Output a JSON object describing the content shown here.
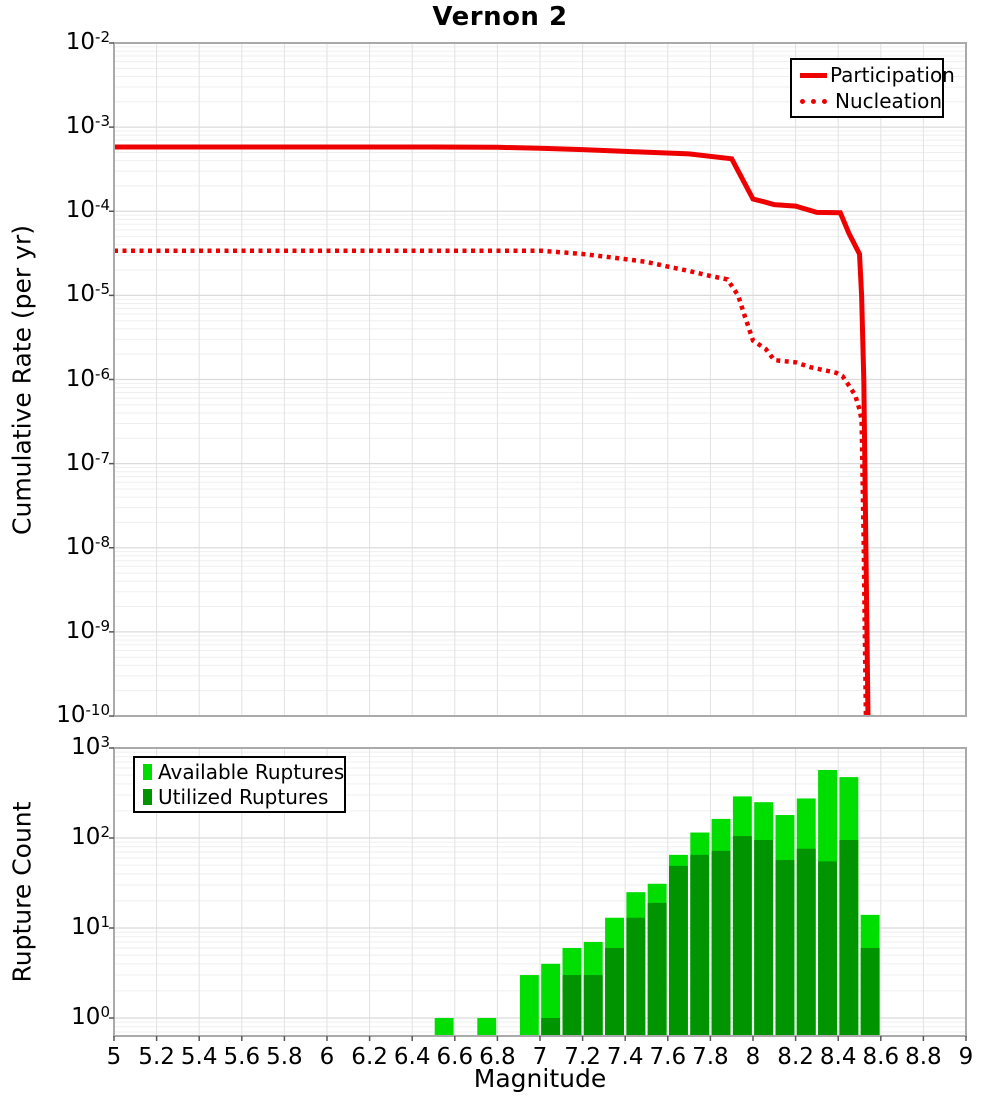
{
  "figure": {
    "title": "Vernon 2"
  },
  "colors": {
    "line_red": "#EE0000",
    "available_green": "#00DD00",
    "utilized_green": "#009400",
    "grid_major": "#DBDBDB",
    "grid_minor": "#EFEFEF",
    "grid_vertical": "#E2E2E2",
    "plot_border": "#AAAAAA",
    "tick_mark": "#555555"
  },
  "chart_data": [
    {
      "type": "line",
      "title": "Vernon 2",
      "ylabel": "Cumulative Rate (per yr)",
      "xlim": [
        5,
        9
      ],
      "ylim_log10": [
        -10,
        -2
      ],
      "grid": true,
      "legend_position": "top-right",
      "y_tick_exponents": [
        -2,
        -3,
        -4,
        -5,
        -6,
        -7,
        -8,
        -9,
        -10
      ],
      "x_tick_values": [
        5,
        5.2,
        5.4,
        5.6,
        5.8,
        6,
        6.2,
        6.4,
        6.6,
        6.8,
        7,
        7.2,
        7.4,
        7.6,
        7.8,
        8,
        8.2,
        8.4,
        8.6,
        8.8,
        9
      ],
      "x_tick_labels": [],
      "series": [
        {
          "name": "Participation",
          "style": "solid",
          "color": "#EE0000",
          "points": [
            [
              5.0,
              0.00058
            ],
            [
              5.5,
              0.00058
            ],
            [
              6.0,
              0.00058
            ],
            [
              6.5,
              0.00058
            ],
            [
              6.8,
              0.000575
            ],
            [
              7.0,
              0.00056
            ],
            [
              7.2,
              0.00054
            ],
            [
              7.4,
              0.000515
            ],
            [
              7.7,
              0.00048
            ],
            [
              7.9,
              0.00042
            ],
            [
              8.0,
              0.00014
            ],
            [
              8.05,
              0.00013
            ],
            [
              8.1,
              0.00012
            ],
            [
              8.2,
              0.000115
            ],
            [
              8.3,
              9.7e-05
            ],
            [
              8.41,
              9.6e-05
            ],
            [
              8.45,
              5.5e-05
            ],
            [
              8.5,
              3.1e-05
            ],
            [
              8.51,
              1e-05
            ],
            [
              8.52,
              1e-06
            ],
            [
              8.53,
              1e-08
            ],
            [
              8.54,
              1e-10
            ]
          ]
        },
        {
          "name": "Nucleation",
          "style": "dotted",
          "color": "#EE0000",
          "points": [
            [
              5.0,
              3.4e-05
            ],
            [
              5.5,
              3.4e-05
            ],
            [
              6.0,
              3.4e-05
            ],
            [
              6.5,
              3.4e-05
            ],
            [
              7.0,
              3.4e-05
            ],
            [
              7.1,
              3.25e-05
            ],
            [
              7.2,
              3.1e-05
            ],
            [
              7.3,
              2.9e-05
            ],
            [
              7.4,
              2.7e-05
            ],
            [
              7.5,
              2.5e-05
            ],
            [
              7.6,
              2.2e-05
            ],
            [
              7.7,
              1.95e-05
            ],
            [
              7.8,
              1.7e-05
            ],
            [
              7.88,
              1.55e-05
            ],
            [
              7.93,
              1e-05
            ],
            [
              7.96,
              5.8e-06
            ],
            [
              8.0,
              2.9e-06
            ],
            [
              8.06,
              2.3e-06
            ],
            [
              8.1,
              1.7e-06
            ],
            [
              8.2,
              1.6e-06
            ],
            [
              8.27,
              1.4e-06
            ],
            [
              8.39,
              1.2e-06
            ],
            [
              8.42,
              1.1e-06
            ],
            [
              8.45,
              8.5e-07
            ],
            [
              8.48,
              6.5e-07
            ],
            [
              8.5,
              4.4e-07
            ],
            [
              8.51,
              3.3e-07
            ],
            [
              8.52,
              1e-08
            ],
            [
              8.53,
              1e-10
            ]
          ]
        }
      ]
    },
    {
      "type": "bar",
      "ylabel": "Rupture Count",
      "xlabel": "Magnitude",
      "xlim": [
        5,
        9
      ],
      "ylim_log10": [
        -0.2,
        3
      ],
      "bin_width": 0.1,
      "grid": true,
      "legend_position": "top-left",
      "y_tick_exponents": [
        3,
        2,
        1,
        0
      ],
      "x_tick_values": [
        5,
        5.2,
        5.4,
        5.6,
        5.8,
        6,
        6.2,
        6.4,
        6.6,
        6.8,
        7,
        7.2,
        7.4,
        7.6,
        7.8,
        8,
        8.2,
        8.4,
        8.6,
        8.8,
        9
      ],
      "x_tick_labels": [
        "5",
        "5.2",
        "5.4",
        "5.6",
        "5.8",
        "6",
        "6.2",
        "6.4",
        "6.6",
        "6.8",
        "7",
        "7.2",
        "7.4",
        "7.6",
        "7.8",
        "8",
        "8.2",
        "8.4",
        "8.6",
        "8.8",
        "9"
      ],
      "series": [
        {
          "name": "Available Ruptures",
          "color": "#00DD00",
          "bins": [
            [
              6.5,
              1
            ],
            [
              6.7,
              1
            ],
            [
              6.9,
              3
            ],
            [
              7.0,
              4
            ],
            [
              7.1,
              6
            ],
            [
              7.2,
              7
            ],
            [
              7.3,
              13
            ],
            [
              7.4,
              25
            ],
            [
              7.5,
              31
            ],
            [
              7.6,
              65
            ],
            [
              7.7,
              115
            ],
            [
              7.8,
              163
            ],
            [
              7.9,
              290
            ],
            [
              8.0,
              250
            ],
            [
              8.1,
              180
            ],
            [
              8.2,
              275
            ],
            [
              8.3,
              570
            ],
            [
              8.4,
              475
            ],
            [
              8.5,
              14
            ]
          ]
        },
        {
          "name": "Utilized Ruptures",
          "color": "#009400",
          "bins": [
            [
              7.0,
              1
            ],
            [
              7.1,
              3
            ],
            [
              7.2,
              3
            ],
            [
              7.3,
              6
            ],
            [
              7.4,
              13
            ],
            [
              7.5,
              19
            ],
            [
              7.6,
              49
            ],
            [
              7.7,
              65
            ],
            [
              7.8,
              72
            ],
            [
              7.9,
              105
            ],
            [
              8.0,
              95
            ],
            [
              8.1,
              57
            ],
            [
              8.2,
              76
            ],
            [
              8.3,
              55
            ],
            [
              8.4,
              95
            ],
            [
              8.5,
              6
            ]
          ]
        }
      ]
    }
  ]
}
